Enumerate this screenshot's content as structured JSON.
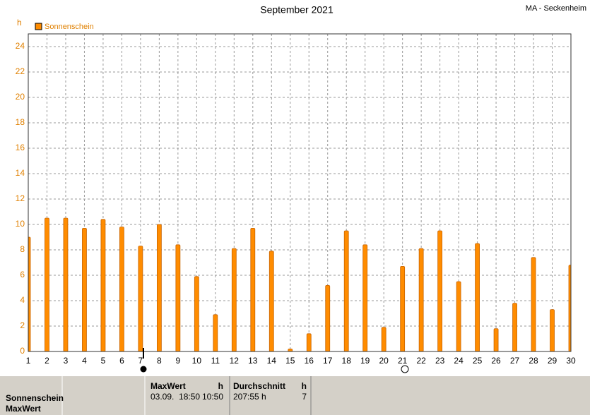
{
  "chart_data": {
    "type": "bar",
    "title": "September 2021",
    "station": "MA - Seckenheim",
    "unit_label": "h",
    "x": [
      1,
      2,
      3,
      4,
      5,
      6,
      7,
      8,
      9,
      10,
      11,
      12,
      13,
      14,
      15,
      16,
      17,
      18,
      19,
      20,
      21,
      22,
      23,
      24,
      25,
      26,
      27,
      28,
      29,
      30
    ],
    "series": [
      {
        "name": "Sonnenschein",
        "color": "#ff8c00",
        "values": [
          9.0,
          10.5,
          10.5,
          9.7,
          10.4,
          9.8,
          8.3,
          10.0,
          8.4,
          5.9,
          2.9,
          8.1,
          9.7,
          7.9,
          0.2,
          1.4,
          5.2,
          9.5,
          8.4,
          1.9,
          6.7,
          8.1,
          9.5,
          5.5,
          8.5,
          1.8,
          3.8,
          7.4,
          3.3,
          6.8
        ]
      }
    ],
    "xlim": [
      1,
      30
    ],
    "ylim": [
      0,
      25
    ],
    "xticks": [
      1,
      2,
      3,
      4,
      5,
      6,
      7,
      8,
      9,
      10,
      11,
      12,
      13,
      14,
      15,
      16,
      17,
      18,
      19,
      20,
      21,
      22,
      23,
      24,
      25,
      26,
      27,
      28,
      29,
      30
    ],
    "yticks": [
      0,
      2,
      4,
      6,
      8,
      10,
      12,
      14,
      16,
      18,
      20,
      22,
      24
    ],
    "grid": true
  },
  "table": {
    "row_labels": [
      "Sonnenschein",
      "MaxWert"
    ],
    "columns": [
      {
        "header": "MaxWert",
        "unit": "h",
        "cells": [
          "03.09.  18:50",
          "10:50"
        ]
      },
      {
        "header": "Durchschnitt",
        "unit": "h",
        "cells": [
          "207:55 h",
          "7"
        ]
      }
    ]
  }
}
